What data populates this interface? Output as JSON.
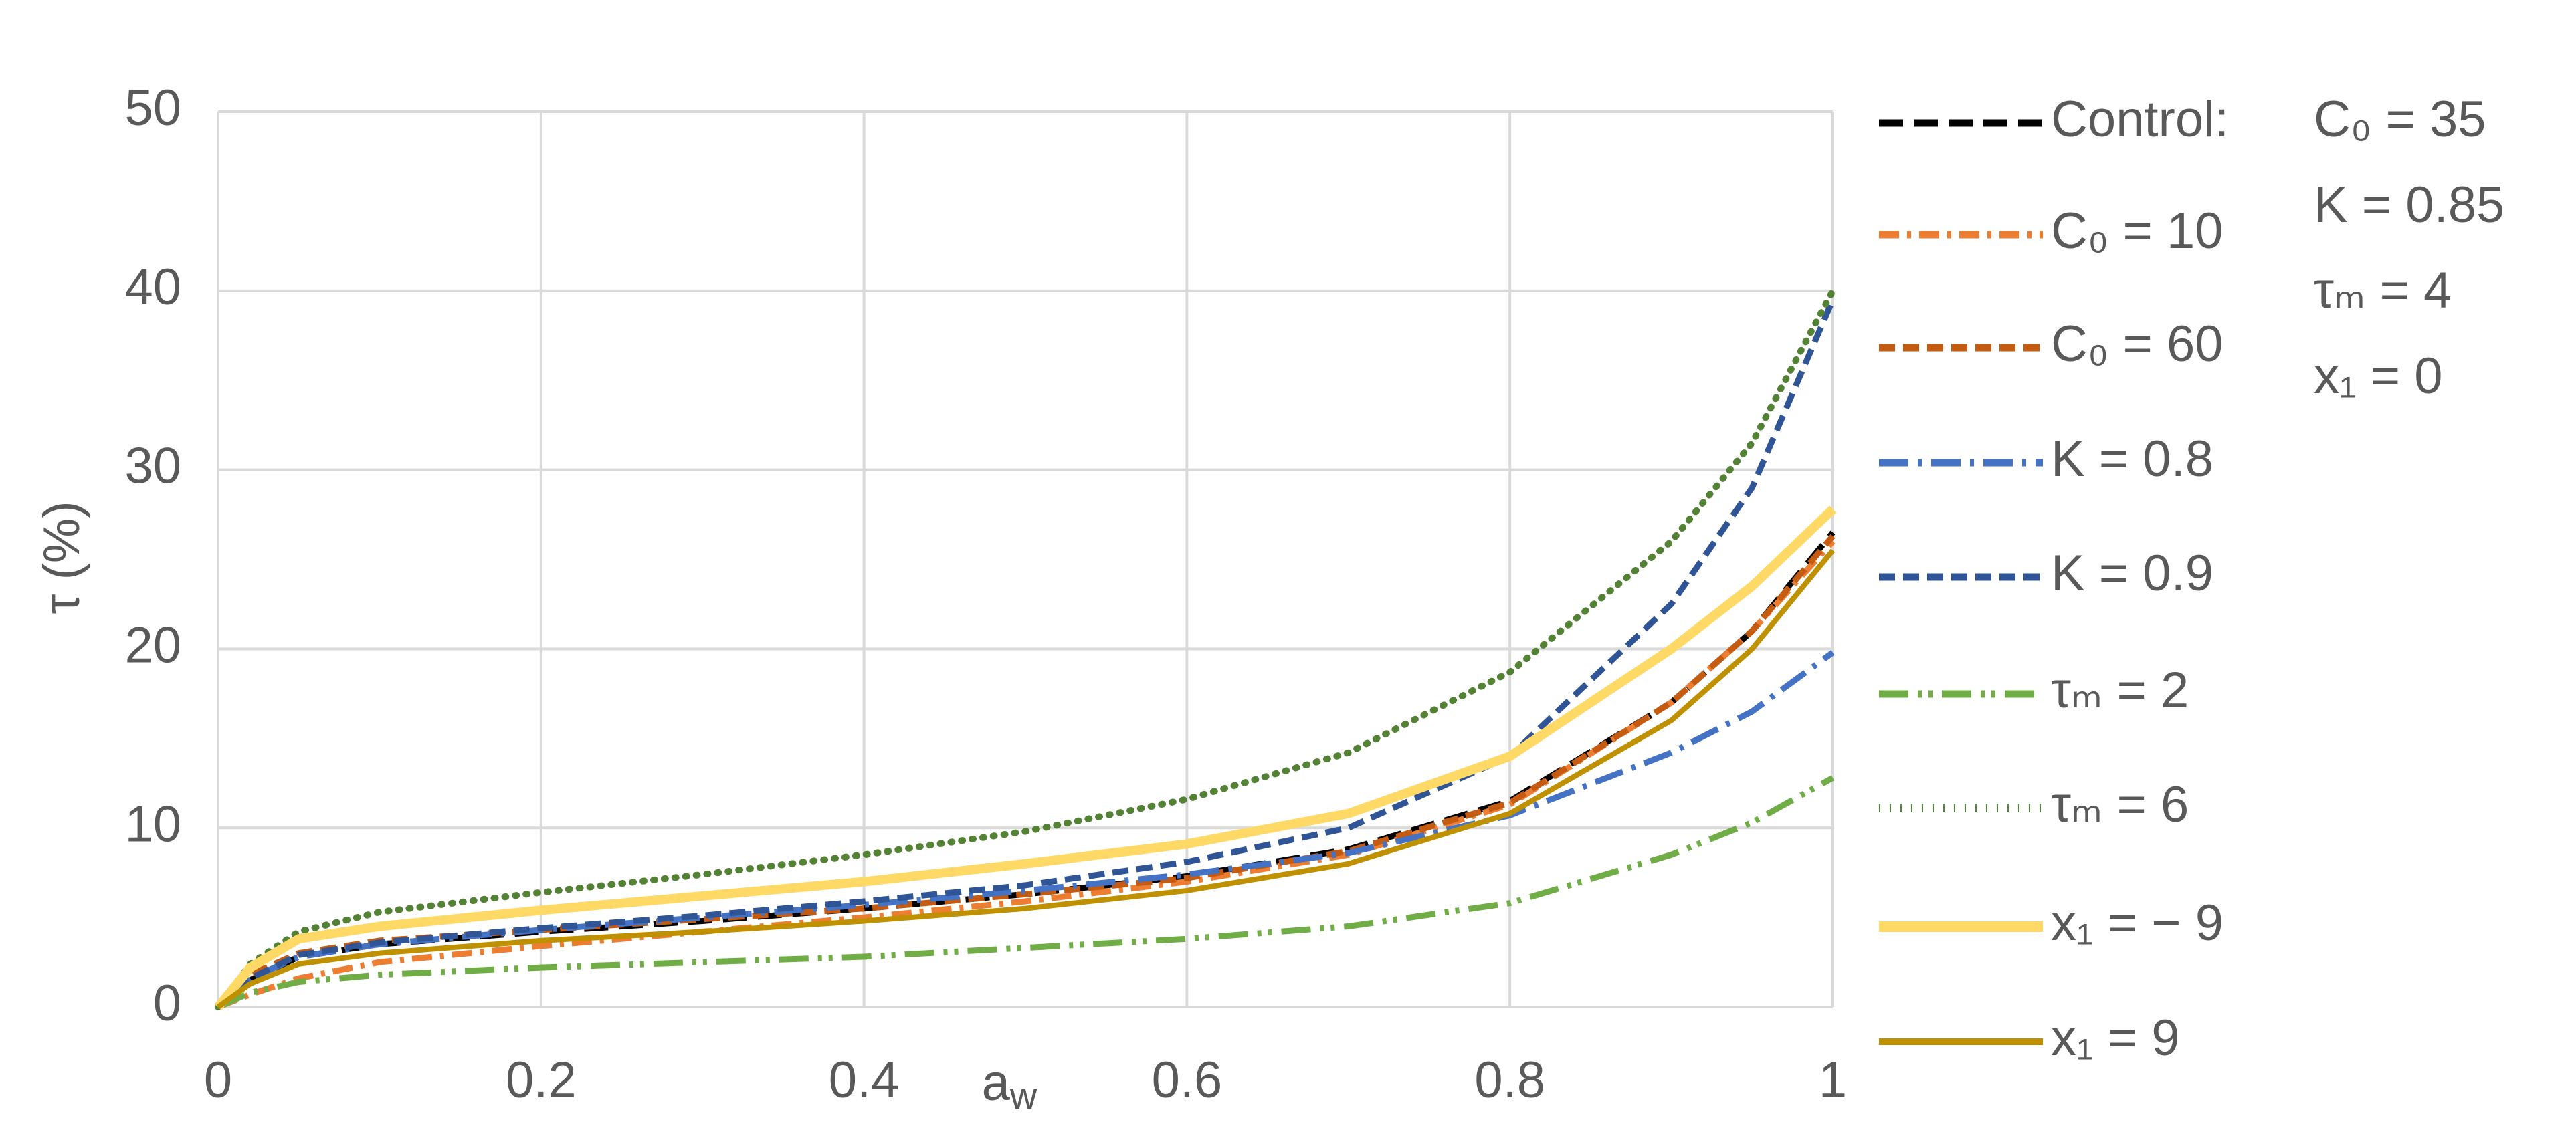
{
  "chart_data": {
    "type": "line",
    "xlabel": {
      "text": "a",
      "subscript": "w"
    },
    "ylabel": "τ (%)",
    "xlim": [
      0,
      1
    ],
    "ylim": [
      0,
      50
    ],
    "xticks": [
      0,
      0.2,
      0.4,
      0.6,
      0.8,
      1
    ],
    "yticks": [
      0,
      10,
      20,
      30,
      40,
      50
    ],
    "grid": true,
    "legend": "right",
    "annotations": [
      "C₀ = 35",
      "K = 0.85",
      "τₘ = 4",
      "x₁ = 0"
    ],
    "x": [
      0,
      0.02,
      0.05,
      0.1,
      0.2,
      0.3,
      0.4,
      0.5,
      0.6,
      0.7,
      0.8,
      0.9,
      0.95,
      1
    ],
    "series": [
      {
        "name": "Control:",
        "color": "#000000",
        "style": "long-dash",
        "values": [
          0,
          1.5,
          2.8,
          3.5,
          4.2,
          4.8,
          5.5,
          6.3,
          7.3,
          8.8,
          11.5,
          17,
          21,
          26.5
        ]
      },
      {
        "name": "C₀ = 10",
        "color": "#ed7d31",
        "style": "dash-dot",
        "values": [
          0,
          0.7,
          1.6,
          2.5,
          3.4,
          4.2,
          5,
          5.9,
          7,
          8.5,
          11.3,
          17,
          21,
          26
        ]
      },
      {
        "name": "C₀ = 60",
        "color": "#c55a11",
        "style": "dash",
        "values": [
          0,
          1.8,
          3,
          3.7,
          4.3,
          4.9,
          5.5,
          6.3,
          7.2,
          8.7,
          11.4,
          17,
          21,
          26.3
        ]
      },
      {
        "name": "K = 0.8",
        "color": "#4472c4",
        "style": "long-dash-dot",
        "values": [
          0,
          1.6,
          2.8,
          3.5,
          4.3,
          5,
          5.7,
          6.5,
          7.4,
          8.6,
          10.7,
          14.2,
          16.5,
          19.8
        ]
      },
      {
        "name": "K = 0.9",
        "color": "#2f5597",
        "style": "dash",
        "values": [
          0,
          1.6,
          2.9,
          3.6,
          4.4,
          5.1,
          5.9,
          6.8,
          8.1,
          10,
          14,
          22.5,
          29,
          39.5
        ]
      },
      {
        "name": "τₘ = 2",
        "color": "#70ad47",
        "style": "long-dash-dot-dot",
        "values": [
          0,
          0.8,
          1.4,
          1.8,
          2.2,
          2.5,
          2.8,
          3.3,
          3.8,
          4.5,
          5.8,
          8.5,
          10.3,
          12.8
        ]
      },
      {
        "name": "τₘ = 6",
        "color": "#548235",
        "style": "dot",
        "values": [
          0,
          2.4,
          4.2,
          5.3,
          6.4,
          7.4,
          8.5,
          9.8,
          11.6,
          14.2,
          18.7,
          26,
          31.5,
          40
        ]
      },
      {
        "name": "x₁ = − 9",
        "color": "#ffd966",
        "style": "double",
        "values": [
          0,
          2.2,
          3.8,
          4.5,
          5.4,
          6.2,
          7,
          8,
          9.1,
          10.8,
          14,
          20,
          23.5,
          27.8
        ]
      },
      {
        "name": "x₁ = 9",
        "color": "#bf9000",
        "style": "solid",
        "values": [
          0,
          1.3,
          2.4,
          3,
          3.7,
          4.2,
          4.8,
          5.5,
          6.5,
          8,
          10.8,
          16,
          20,
          25.5
        ]
      }
    ]
  }
}
